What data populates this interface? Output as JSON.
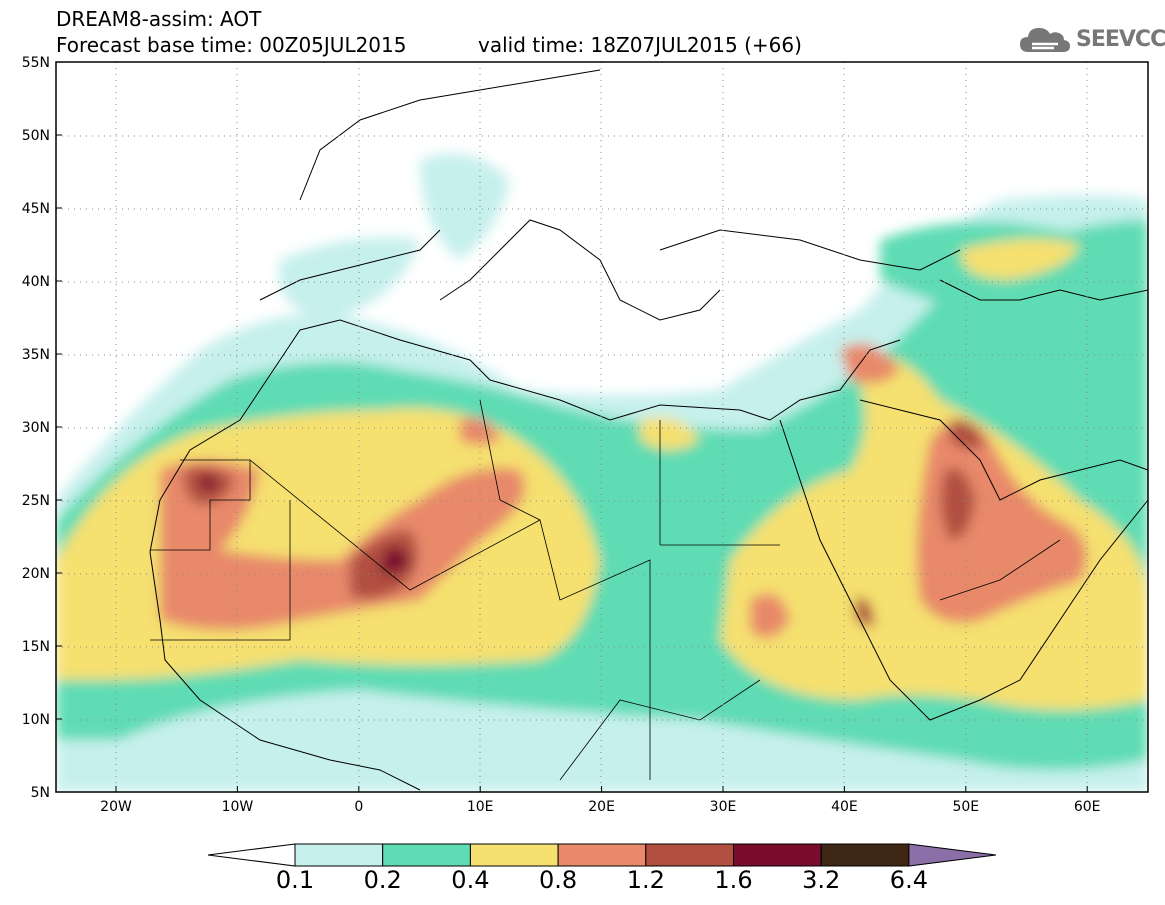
{
  "header": {
    "title": "DREAM8-assim: AOT",
    "base_time": "Forecast base time: 00Z05JUL2015",
    "valid_time": "valid time: 18Z07JUL2015 (+66)"
  },
  "logo": {
    "icon": "cloud-icon",
    "text": "SEEVCCC"
  },
  "axes": {
    "lat_labels": [
      "55N",
      "50N",
      "45N",
      "40N",
      "35N",
      "30N",
      "25N",
      "20N",
      "15N",
      "10N",
      "5N"
    ],
    "lon_labels": [
      "20W",
      "10W",
      "0",
      "10E",
      "20E",
      "30E",
      "40E",
      "50E",
      "60E"
    ]
  },
  "colorbar": {
    "labels": [
      "0.1",
      "0.2",
      "0.4",
      "0.8",
      "1.2",
      "1.6",
      "3.2",
      "6.4"
    ],
    "colors": [
      "#c6f0ec",
      "#5fdcb4",
      "#f5e070",
      "#e8896a",
      "#b14f40",
      "#7a0c2e",
      "#3e2614",
      "#8a6fa8"
    ]
  }
}
